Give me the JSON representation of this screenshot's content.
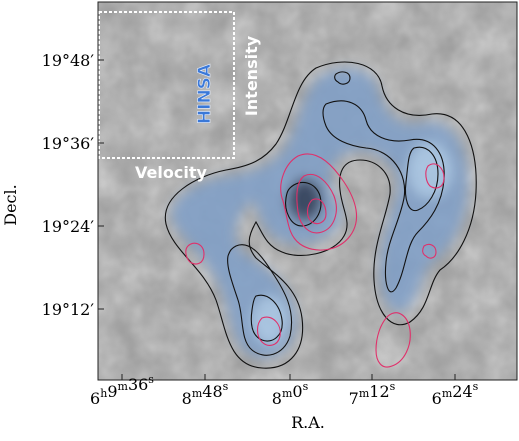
{
  "axes": {
    "ylabel": "Decl.",
    "xlabel": "R.A.",
    "y_ticks": [
      {
        "deg": "19",
        "min": "48"
      },
      {
        "deg": "19",
        "min": "36"
      },
      {
        "deg": "19",
        "min": "24"
      },
      {
        "deg": "19",
        "min": "12"
      }
    ],
    "x_ticks": [
      {
        "h": "6",
        "m": "9",
        "s": "36"
      },
      {
        "m": "8",
        "s": "48"
      },
      {
        "m": "8",
        "s": "0"
      },
      {
        "m": "7",
        "s": "12"
      },
      {
        "m": "6",
        "s": "24"
      }
    ],
    "units": {
      "h": "h",
      "m": "m",
      "s": "s",
      "deg": "°",
      "arcmin": "′"
    }
  },
  "inset": {
    "label": "HINSA",
    "x_label": "Velocity",
    "y_label": "Intensity"
  },
  "colors": {
    "background": "#9a9a9a",
    "emission": "#7f9fc8",
    "emission_bright": "#a8c8e8",
    "black_contour": "#111111",
    "red_contour": "#e0306a",
    "inset_label": "#3a78d8",
    "white_text": "#ffffff"
  }
}
